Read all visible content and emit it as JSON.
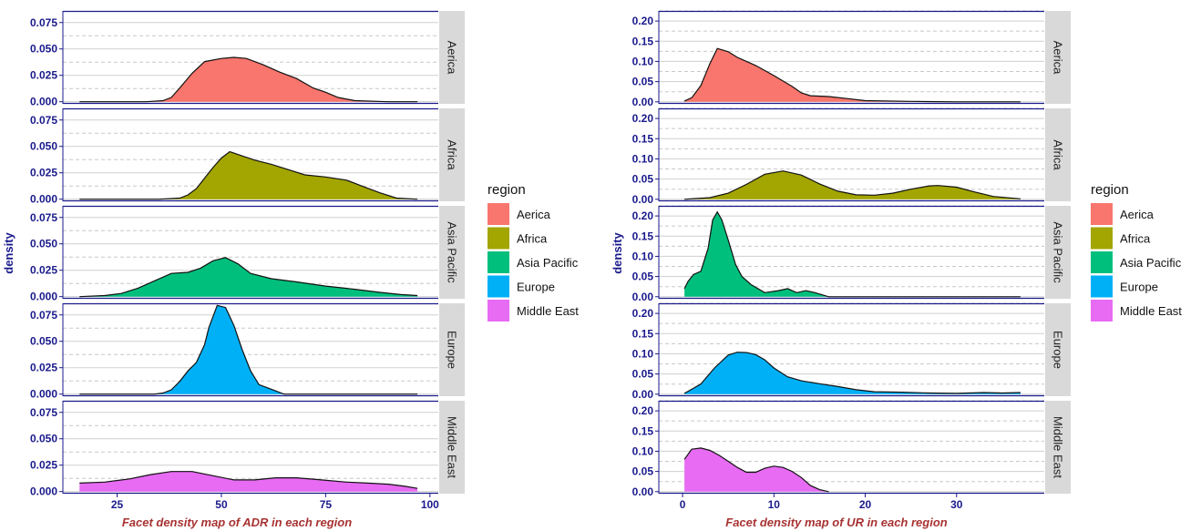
{
  "chart_data": [
    {
      "type": "area",
      "subtype": "facet-density",
      "xlabel": "Facet density map of ADR in each region",
      "ylabel": "density",
      "xlim": [
        12,
        102
      ],
      "ylim": [
        -0.002,
        0.086
      ],
      "x_ticks": [
        25,
        50,
        75,
        100
      ],
      "y_ticks": [
        0,
        0.025,
        0.05,
        0.075
      ],
      "y_tick_labels": [
        "0.000",
        "0.025",
        "0.050",
        "0.075"
      ],
      "grid": true,
      "series": [
        {
          "name": "Aerica",
          "color": "#F8766D",
          "x": [
            16,
            25,
            32,
            36,
            38,
            40,
            43,
            46,
            50,
            53,
            56,
            60,
            64,
            68,
            72,
            75,
            78,
            82,
            90,
            97
          ],
          "y": [
            0,
            0,
            0,
            0.001,
            0.004,
            0.013,
            0.027,
            0.038,
            0.041,
            0.042,
            0.041,
            0.035,
            0.028,
            0.022,
            0.013,
            0.009,
            0.004,
            0.001,
            0,
            0
          ]
        },
        {
          "name": "Africa",
          "color": "#A3A500",
          "x": [
            16,
            35,
            40,
            42,
            44,
            46,
            48,
            50,
            52,
            55,
            58,
            62,
            66,
            70,
            75,
            80,
            84,
            88,
            92,
            97
          ],
          "y": [
            0,
            0,
            0.001,
            0.004,
            0.01,
            0.02,
            0.03,
            0.039,
            0.045,
            0.041,
            0.037,
            0.033,
            0.028,
            0.023,
            0.021,
            0.018,
            0.012,
            0.006,
            0.001,
            0
          ]
        },
        {
          "name": "Asia Pacific",
          "color": "#00BF7D",
          "x": [
            16,
            22,
            26,
            30,
            34,
            38,
            42,
            45,
            48,
            51,
            54,
            57,
            62,
            68,
            75,
            82,
            88,
            93,
            97
          ],
          "y": [
            0,
            0.001,
            0.003,
            0.008,
            0.015,
            0.022,
            0.023,
            0.027,
            0.034,
            0.037,
            0.031,
            0.022,
            0.017,
            0.014,
            0.01,
            0.007,
            0.004,
            0.002,
            0.001
          ]
        },
        {
          "name": "Europe",
          "color": "#00B0F6",
          "x": [
            16,
            34,
            36,
            38,
            40,
            42,
            44,
            46,
            47,
            49,
            51,
            53,
            55,
            57,
            59,
            61,
            63,
            65,
            70,
            97
          ],
          "y": [
            0,
            0,
            0.001,
            0.004,
            0.012,
            0.022,
            0.03,
            0.047,
            0.063,
            0.084,
            0.082,
            0.065,
            0.042,
            0.022,
            0.009,
            0.006,
            0.003,
            0,
            0,
            0
          ]
        },
        {
          "name": "Middle East",
          "color": "#E76BF3",
          "x": [
            16,
            22,
            28,
            33,
            38,
            43,
            48,
            53,
            58,
            63,
            68,
            74,
            80,
            85,
            90,
            94,
            97
          ],
          "y": [
            0.008,
            0.009,
            0.012,
            0.016,
            0.019,
            0.019,
            0.015,
            0.011,
            0.011,
            0.013,
            0.013,
            0.011,
            0.009,
            0.008,
            0.007,
            0.005,
            0.003
          ]
        }
      ]
    },
    {
      "type": "area",
      "subtype": "facet-density",
      "xlabel": "Facet density map of UR in each region",
      "ylabel": "density",
      "xlim": [
        -2.6,
        39.6
      ],
      "ylim": [
        -0.005,
        0.225
      ],
      "x_ticks": [
        0,
        10,
        20,
        30
      ],
      "y_ticks": [
        0,
        0.05,
        0.1,
        0.15,
        0.2
      ],
      "y_tick_labels": [
        "0.00",
        "0.05",
        "0.10",
        "0.15",
        "0.20"
      ],
      "grid": true,
      "series": [
        {
          "name": "Aerica",
          "color": "#F8766D",
          "x": [
            0.2,
            1,
            2,
            3,
            3.8,
            5,
            6,
            7,
            8,
            10,
            12,
            13,
            14,
            16,
            18,
            20,
            25,
            30,
            37
          ],
          "y": [
            0.002,
            0.01,
            0.04,
            0.095,
            0.132,
            0.124,
            0.11,
            0.1,
            0.09,
            0.065,
            0.038,
            0.022,
            0.015,
            0.013,
            0.008,
            0.003,
            0.001,
            0,
            0
          ]
        },
        {
          "name": "Africa",
          "color": "#A3A500",
          "x": [
            0.2,
            3,
            5,
            7,
            9,
            11,
            13,
            15,
            17,
            19,
            21,
            23,
            25,
            27,
            28,
            30,
            32,
            34,
            37
          ],
          "y": [
            0,
            0.004,
            0.015,
            0.037,
            0.062,
            0.07,
            0.06,
            0.038,
            0.02,
            0.011,
            0.01,
            0.015,
            0.025,
            0.033,
            0.034,
            0.03,
            0.018,
            0.007,
            0.001
          ]
        },
        {
          "name": "Asia Pacific",
          "color": "#00BF7D",
          "x": [
            0.2,
            0.6,
            1.2,
            2,
            2.8,
            3.3,
            3.8,
            4.3,
            5,
            5.8,
            6.5,
            7.5,
            9,
            10.5,
            11.5,
            12.5,
            13.5,
            14.5,
            16,
            20,
            37
          ],
          "y": [
            0.02,
            0.038,
            0.055,
            0.063,
            0.12,
            0.19,
            0.21,
            0.19,
            0.14,
            0.08,
            0.05,
            0.03,
            0.01,
            0.015,
            0.02,
            0.01,
            0.015,
            0.01,
            0,
            0,
            0
          ]
        },
        {
          "name": "Europe",
          "color": "#00B0F6",
          "x": [
            0.2,
            2,
            3.5,
            5,
            6,
            7,
            8,
            9,
            10,
            11.5,
            13,
            15,
            17,
            19,
            21,
            24,
            27,
            30,
            33,
            35,
            37
          ],
          "y": [
            0.002,
            0.025,
            0.065,
            0.097,
            0.104,
            0.103,
            0.098,
            0.085,
            0.065,
            0.043,
            0.033,
            0.026,
            0.019,
            0.011,
            0.006,
            0.005,
            0.003,
            0.002,
            0.004,
            0.003,
            0.004
          ]
        },
        {
          "name": "Middle East",
          "color": "#E76BF3",
          "x": [
            0.2,
            1,
            2,
            3,
            4,
            5,
            6,
            7,
            8,
            9,
            10,
            11,
            12,
            13,
            14,
            15,
            16
          ],
          "y": [
            0.08,
            0.105,
            0.108,
            0.102,
            0.09,
            0.075,
            0.06,
            0.048,
            0.048,
            0.058,
            0.063,
            0.06,
            0.05,
            0.035,
            0.015,
            0.005,
            0
          ]
        }
      ]
    }
  ],
  "legend": {
    "title": "region",
    "items": [
      {
        "label": "Aerica",
        "color": "#F8766D"
      },
      {
        "label": "Africa",
        "color": "#A3A500"
      },
      {
        "label": "Asia Pacific",
        "color": "#00BF7D"
      },
      {
        "label": "Europe",
        "color": "#00B0F6"
      },
      {
        "label": "Middle East",
        "color": "#E76BF3"
      }
    ]
  },
  "colors": {
    "axis": "#1a1a8c",
    "xlabel": "#a83232",
    "strip_bg": "#d9d9d9",
    "grid_major": "#cfcfcf",
    "grid_minor": "#c8c8c8"
  }
}
